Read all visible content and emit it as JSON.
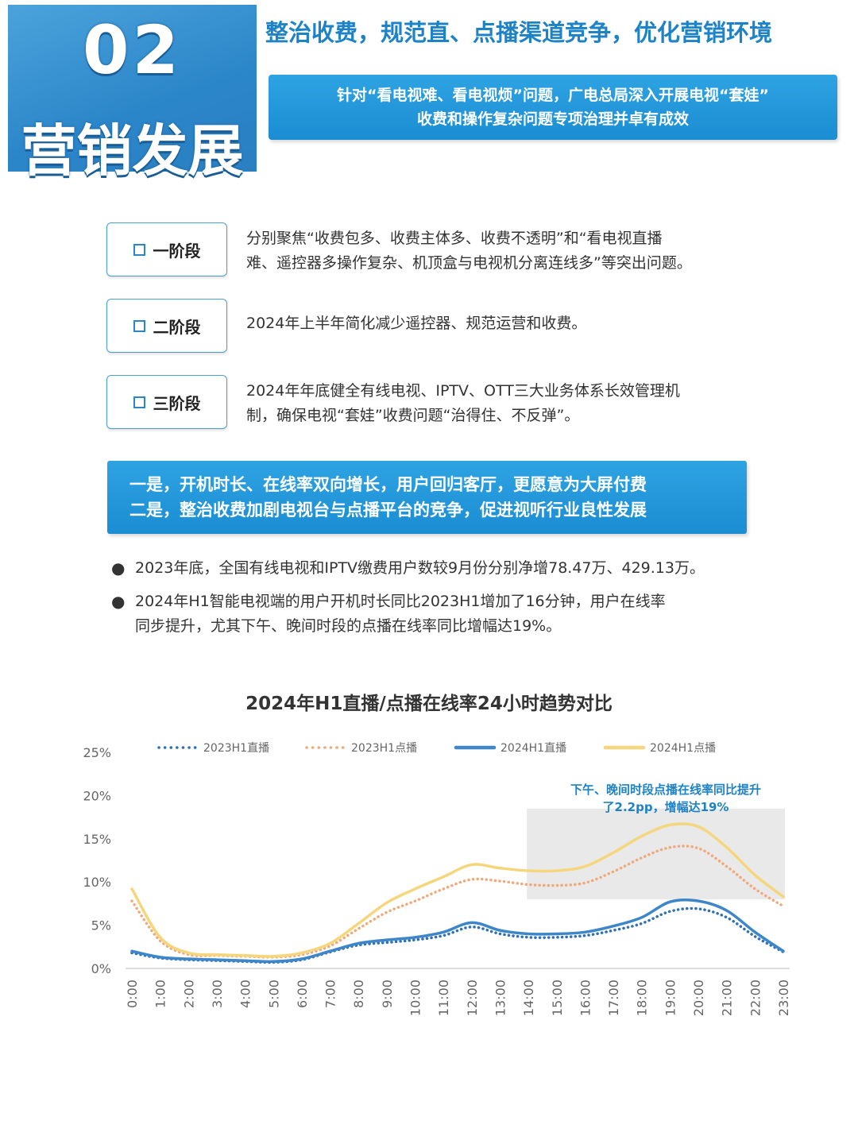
{
  "header": {
    "section_number": "02",
    "section_title": "营销发展",
    "main_title": "整治收费，规范直、点播渠道竞争，优化营销环境",
    "banner_line1": "针对“看电视难、看电视烦”问题，广电总局深入开展电视“套娃”",
    "banner_line2": "收费和操作复杂问题专项治理并卓有成效"
  },
  "stages": [
    {
      "label": "一阶段",
      "desc_line1": "分别聚焦“收费包多、收费主体多、收费不透明”和“看电视直播",
      "desc_line2": "难、遥控器多操作复杂、机顶盒与电视机分离连线多”等突出问题。"
    },
    {
      "label": "二阶段",
      "desc_line1": "2024年上半年简化减少遥控器、规范运营和收费。",
      "desc_line2": ""
    },
    {
      "label": "三阶段",
      "desc_line1": "2024年年底健全有线电视、IPTV、OTT三大业务体系长效管理机",
      "desc_line2": "制，确保电视“套娃”收费问题“治得住、不反弹”。"
    }
  ],
  "conclusion": {
    "line1": "一是，开机时长、在线率双向增长，用户回归客厅，更愿意为大屏付费",
    "line2": "二是，整治收费加剧电视台与点播平台的竞争，促进视听行业良性发展"
  },
  "bullets": [
    {
      "line1": "2023年底，全国有线电视和IPTV缴费用户数较9月份分别净增78.47万、429.13万。",
      "line2": ""
    },
    {
      "line1": "2024年H1智能电视端的用户开机时长同比2023H1增加了16分钟，用户在线率",
      "line2": "同步提升，尤其下午、晚间时段的点播在线率同比增幅达19%。"
    }
  ],
  "chart_data": {
    "type": "line",
    "title": "2024年H1直播/点播在线率24小时趋势对比",
    "x": [
      "0:00",
      "1:00",
      "2:00",
      "3:00",
      "4:00",
      "5:00",
      "6:00",
      "7:00",
      "8:00",
      "9:00",
      "10:00",
      "11:00",
      "12:00",
      "13:00",
      "14:00",
      "15:00",
      "16:00",
      "17:00",
      "18:00",
      "19:00",
      "20:00",
      "21:00",
      "22:00",
      "23:00"
    ],
    "ylim": [
      0,
      25
    ],
    "yticks": [
      "0%",
      "5%",
      "10%",
      "15%",
      "20%",
      "25%"
    ],
    "legend_position": "top",
    "series": [
      {
        "name": "2023H1直播",
        "color": "#2f6fb5",
        "style": "dotted",
        "values": [
          1.8,
          1.2,
          1.0,
          0.9,
          0.8,
          0.7,
          1.0,
          1.9,
          2.7,
          3.0,
          3.3,
          3.8,
          4.8,
          4.0,
          3.6,
          3.6,
          3.8,
          4.4,
          5.2,
          6.6,
          6.9,
          5.9,
          3.7,
          1.9
        ]
      },
      {
        "name": "2023H1点播",
        "color": "#f0a97a",
        "style": "dotted",
        "values": [
          7.8,
          3.2,
          1.6,
          1.5,
          1.4,
          1.3,
          1.6,
          2.6,
          4.6,
          6.5,
          7.8,
          9.2,
          10.3,
          10.1,
          9.7,
          9.6,
          9.9,
          11.2,
          12.8,
          14.0,
          13.9,
          11.8,
          9.2,
          7.2
        ]
      },
      {
        "name": "2024H1直播",
        "color": "#3d86c9",
        "style": "solid",
        "values": [
          2.0,
          1.3,
          1.1,
          1.0,
          0.9,
          0.8,
          1.1,
          2.0,
          2.9,
          3.3,
          3.6,
          4.2,
          5.3,
          4.4,
          4.0,
          4.0,
          4.2,
          4.9,
          5.9,
          7.7,
          7.8,
          6.7,
          4.2,
          2.0
        ]
      },
      {
        "name": "2024H1点播",
        "color": "#f5d67c",
        "style": "solid",
        "values": [
          9.2,
          3.6,
          1.8,
          1.6,
          1.5,
          1.4,
          1.8,
          2.9,
          5.2,
          7.6,
          9.2,
          10.6,
          12.0,
          11.6,
          11.3,
          11.3,
          11.8,
          13.4,
          15.3,
          16.6,
          16.4,
          14.0,
          10.8,
          8.3
        ]
      }
    ],
    "highlight": {
      "x_start": "14:00",
      "x_end": "23:00",
      "y_start": 8,
      "y_end": 18.5
    },
    "annotation_line1": "下午、晚间时段点播在线率同比提升",
    "annotation_line2": "了2.2pp，增幅达19%"
  }
}
